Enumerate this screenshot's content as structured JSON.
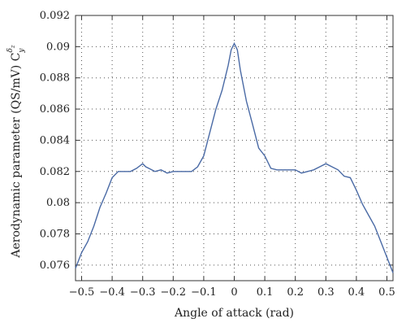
{
  "chart_data": {
    "type": "line",
    "title": "",
    "xlabel": "Angle of attack (rad)",
    "ylabel_main": "Aerodynamic parameter (QS/mV) C",
    "ylabel_sub": "y",
    "ylabel_sup": "δ",
    "ylabel_supsub": "z",
    "xlim": [
      -0.52,
      0.52
    ],
    "ylim": [
      0.075,
      0.092
    ],
    "xticks": [
      -0.5,
      -0.4,
      -0.3,
      -0.2,
      -0.1,
      0,
      0.1,
      0.2,
      0.3,
      0.4,
      0.5
    ],
    "xtick_labels": [
      "−0.5",
      "−0.4",
      "−0.3",
      "−0.2",
      "−0.1",
      "0",
      "0.1",
      "0.2",
      "0.3",
      "0.4",
      "0.5"
    ],
    "yticks": [
      0.076,
      0.078,
      0.08,
      0.082,
      0.084,
      0.086,
      0.088,
      0.09,
      0.092
    ],
    "ytick_labels": [
      "0.076",
      "0.078",
      "0.08",
      "0.082",
      "0.084",
      "0.086",
      "0.088",
      "0.09",
      "0.092"
    ],
    "grid": true,
    "line_color": "#4a6aa5",
    "series": [
      {
        "x": [
          -0.52,
          -0.5,
          -0.48,
          -0.46,
          -0.44,
          -0.42,
          -0.4,
          -0.38,
          -0.36,
          -0.34,
          -0.32,
          -0.3,
          -0.29,
          -0.28,
          -0.26,
          -0.24,
          -0.22,
          -0.2,
          -0.18,
          -0.16,
          -0.14,
          -0.12,
          -0.1,
          -0.08,
          -0.06,
          -0.04,
          -0.02,
          -0.01,
          0,
          0.01,
          0.02,
          0.04,
          0.06,
          0.08,
          0.1,
          0.12,
          0.14,
          0.16,
          0.18,
          0.2,
          0.22,
          0.24,
          0.26,
          0.28,
          0.3,
          0.32,
          0.34,
          0.36,
          0.38,
          0.4,
          0.42,
          0.44,
          0.46,
          0.48,
          0.5,
          0.52
        ],
        "y": [
          0.0758,
          0.0768,
          0.0775,
          0.0785,
          0.0797,
          0.0806,
          0.0816,
          0.082,
          0.082,
          0.082,
          0.0822,
          0.0825,
          0.0823,
          0.0822,
          0.082,
          0.0821,
          0.0819,
          0.082,
          0.082,
          0.082,
          0.082,
          0.0823,
          0.083,
          0.0845,
          0.086,
          0.0872,
          0.0888,
          0.0898,
          0.0902,
          0.0898,
          0.0885,
          0.0865,
          0.085,
          0.0835,
          0.083,
          0.0822,
          0.0821,
          0.0821,
          0.0821,
          0.0821,
          0.0819,
          0.082,
          0.0821,
          0.0823,
          0.0825,
          0.0823,
          0.0821,
          0.0817,
          0.0816,
          0.0808,
          0.0799,
          0.0792,
          0.0785,
          0.0775,
          0.0765,
          0.0755
        ]
      }
    ]
  }
}
